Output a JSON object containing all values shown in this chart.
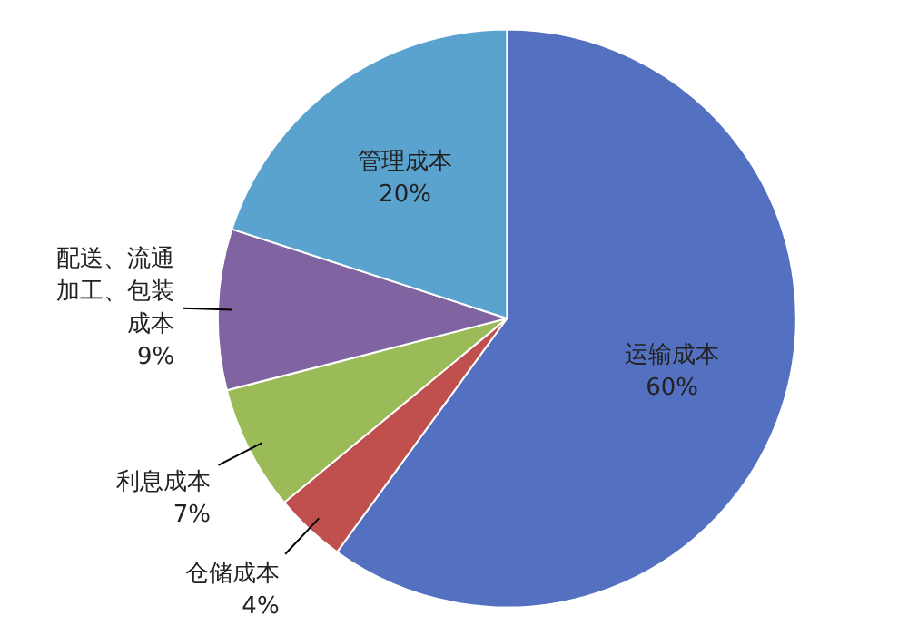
{
  "chart_data": {
    "type": "pie",
    "categories": [
      "运输成本",
      "仓储成本",
      "利息成本",
      "配送、流通加工、包装成本",
      "管理成本"
    ],
    "values": [
      60,
      4,
      7,
      9,
      20
    ],
    "colors": [
      "#5470c0",
      "#c0504d",
      "#9bbb59",
      "#8064a2",
      "#5aa3cf"
    ],
    "value_labels": [
      "60%",
      "4%",
      "7%",
      "9%",
      "20%"
    ]
  }
}
